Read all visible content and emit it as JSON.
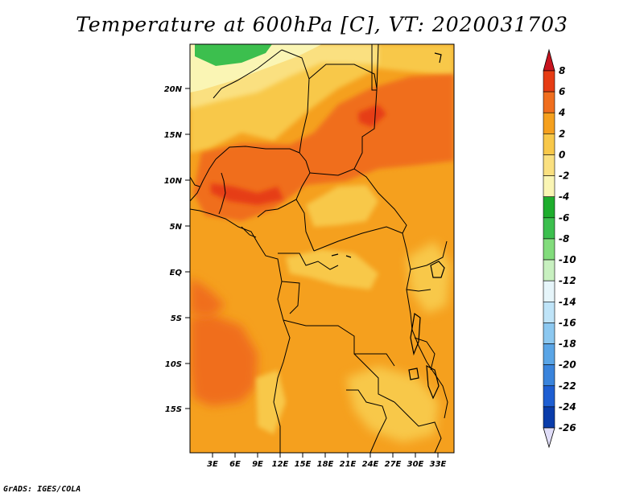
{
  "title": "Temperature at 600hPa [C], VT: 2020031703",
  "credit": "GrADS: IGES/COLA",
  "map": {
    "lat_labels": [
      "20N",
      "15N",
      "10N",
      "5N",
      "EQ",
      "5S",
      "10S",
      "15S"
    ],
    "lon_labels": [
      "3E",
      "6E",
      "9E",
      "12E",
      "15E",
      "18E",
      "21E",
      "24E",
      "27E",
      "30E",
      "33E"
    ],
    "lon_range": [
      0,
      35
    ],
    "lat_range": [
      -20,
      25
    ]
  },
  "colorbar": {
    "labels": [
      "8",
      "6",
      "4",
      "2",
      "0",
      "-2",
      "-4",
      "-6",
      "-8",
      "-10",
      "-12",
      "-14",
      "-16",
      "-18",
      "-20",
      "-22",
      "-24",
      "-26"
    ],
    "colors": [
      "#c8141e",
      "#e63c14",
      "#f06e1e",
      "#f5a01e",
      "#f8c84a",
      "#fae080",
      "#faf5b4",
      "#1ead2d",
      "#3cbf4e",
      "#82dc7c",
      "#c8f0c0",
      "#e6f5fa",
      "#bfe4f8",
      "#8cc8f0",
      "#5aa5e6",
      "#3a84dc",
      "#1e5ed2",
      "#0a3caa",
      "#e0ddf8"
    ]
  },
  "chart_data": {
    "type": "heatmap",
    "title": "Temperature at 600hPa [C], VT: 2020031703",
    "xlabel": "",
    "ylabel": "",
    "x_ticks": [
      "3E",
      "6E",
      "9E",
      "12E",
      "15E",
      "18E",
      "21E",
      "24E",
      "27E",
      "30E",
      "33E"
    ],
    "y_ticks": [
      "20N",
      "15N",
      "10N",
      "5N",
      "EQ",
      "5S",
      "10S",
      "15S"
    ],
    "colorbar_levels": [
      8,
      6,
      4,
      2,
      0,
      -2,
      -4,
      -6,
      -8,
      -10,
      -12,
      -14,
      -16,
      -18,
      -20,
      -22,
      -24,
      -26
    ],
    "value_range_shown": [
      -6,
      6
    ]
  }
}
